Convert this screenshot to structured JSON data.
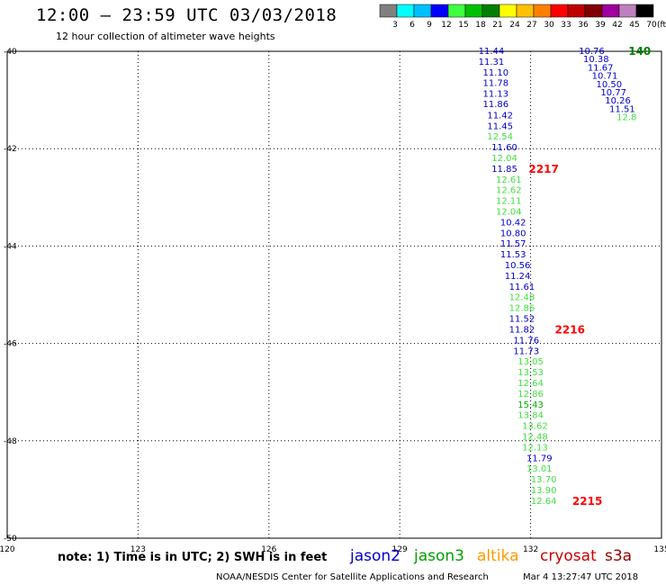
{
  "header": {
    "title": "12:00 – 23:59 UTC 03/03/2018",
    "subtitle": "12 hour collection of altimeter wave heights"
  },
  "colorbar": {
    "colors": [
      "#808080",
      "#00ffff",
      "#00c0ff",
      "#0000ff",
      "#40ff40",
      "#00c000",
      "#008000",
      "#ffff00",
      "#ffc000",
      "#ff8000",
      "#ff0000",
      "#c00000",
      "#800000",
      "#a000a0",
      "#c080c0",
      "#000000"
    ],
    "labels": [
      "3",
      "6",
      "9",
      "12",
      "15",
      "18",
      "21",
      "24",
      "27",
      "30",
      "33",
      "36",
      "39",
      "42",
      "45",
      "70"
    ],
    "unit": "(ft)"
  },
  "footer": {
    "note": "note: 1) Time is in UTC; 2) SWH is in feet",
    "credit": "NOAA/NESDIS Center for Satellite Applications and Research",
    "timestamp": "Mar  4 13:27:47 UTC 2018"
  },
  "legend": [
    {
      "name": "jason2",
      "color": "#0000cc"
    },
    {
      "name": "jason3",
      "color": "#00a000"
    },
    {
      "name": "altika",
      "color": "#ff9900"
    },
    {
      "name": "cryosat",
      "color": "#cc0000"
    },
    {
      "name": "s3a",
      "color": "#990000"
    }
  ],
  "chart_data": {
    "type": "scatter",
    "title": "12:00 – 23:59 UTC 03/03/2018",
    "xlim": [
      120,
      135
    ],
    "ylim": [
      -50,
      -40
    ],
    "xticks": [
      "120",
      "123",
      "126",
      "129",
      "132",
      "135"
    ],
    "yticks": [
      "-40",
      "-42",
      "-44",
      "-46",
      "-48",
      "-50"
    ],
    "grid": true,
    "series": [
      {
        "name": "jason3",
        "color": "#0000cc",
        "points": [
          {
            "lon": 131.1,
            "lat": -40.0,
            "v": "11.44"
          },
          {
            "lon": 131.1,
            "lat": -40.22,
            "v": "11.31"
          },
          {
            "lon": 131.2,
            "lat": -40.44,
            "v": "11.10"
          },
          {
            "lon": 131.2,
            "lat": -40.66,
            "v": "11.78"
          },
          {
            "lon": 131.2,
            "lat": -40.88,
            "v": "11.13"
          },
          {
            "lon": 131.2,
            "lat": -41.09,
            "v": "11.86"
          },
          {
            "lon": 131.3,
            "lat": -41.32,
            "v": "11.42"
          },
          {
            "lon": 131.3,
            "lat": -41.54,
            "v": "11.45"
          },
          {
            "lon": 131.3,
            "lat": -41.76,
            "v": "12.54"
          },
          {
            "lon": 131.4,
            "lat": -41.98,
            "v": "11.60"
          },
          {
            "lon": 131.4,
            "lat": -42.2,
            "v": "12.04"
          },
          {
            "lon": 131.4,
            "lat": -42.42,
            "v": "11.85"
          },
          {
            "lon": 131.5,
            "lat": -42.64,
            "v": "12.61"
          },
          {
            "lon": 131.5,
            "lat": -42.86,
            "v": "12.62"
          },
          {
            "lon": 131.5,
            "lat": -43.08,
            "v": "12.11"
          },
          {
            "lon": 131.5,
            "lat": -43.3,
            "v": "12.04"
          },
          {
            "lon": 131.6,
            "lat": -43.52,
            "v": "10.42"
          },
          {
            "lon": 131.6,
            "lat": -43.74,
            "v": "10.80"
          },
          {
            "lon": 131.6,
            "lat": -43.96,
            "v": "11.57"
          },
          {
            "lon": 131.6,
            "lat": -44.18,
            "v": "11.53"
          },
          {
            "lon": 131.7,
            "lat": -44.4,
            "v": "10.56"
          },
          {
            "lon": 131.7,
            "lat": -44.62,
            "v": "11.24"
          },
          {
            "lon": 131.8,
            "lat": -44.84,
            "v": "11.61"
          },
          {
            "lon": 131.8,
            "lat": -45.06,
            "v": "12.48"
          },
          {
            "lon": 131.8,
            "lat": -45.28,
            "v": "12.86"
          },
          {
            "lon": 131.8,
            "lat": -45.5,
            "v": "11.52"
          },
          {
            "lon": 131.8,
            "lat": -45.72,
            "v": "11.82"
          },
          {
            "lon": 131.9,
            "lat": -45.94,
            "v": "11.76"
          },
          {
            "lon": 131.9,
            "lat": -46.16,
            "v": "11.73"
          },
          {
            "lon": 132.0,
            "lat": -46.38,
            "v": "13.05"
          },
          {
            "lon": 132.0,
            "lat": -46.6,
            "v": "13.53"
          },
          {
            "lon": 132.0,
            "lat": -46.82,
            "v": "12.64"
          },
          {
            "lon": 132.0,
            "lat": -47.04,
            "v": "12.86"
          },
          {
            "lon": 132.0,
            "lat": -47.26,
            "v": "15.43"
          },
          {
            "lon": 132.0,
            "lat": -47.48,
            "v": "13.84"
          },
          {
            "lon": 132.1,
            "lat": -47.7,
            "v": "13.62"
          },
          {
            "lon": 132.1,
            "lat": -47.92,
            "v": "12.48"
          },
          {
            "lon": 132.1,
            "lat": -48.14,
            "v": "12.13"
          },
          {
            "lon": 132.2,
            "lat": -48.36,
            "v": "11.79"
          },
          {
            "lon": 132.2,
            "lat": -48.58,
            "v": "13.01"
          },
          {
            "lon": 132.3,
            "lat": -48.8,
            "v": "13.70"
          },
          {
            "lon": 132.3,
            "lat": -49.02,
            "v": "13.90"
          },
          {
            "lon": 132.3,
            "lat": -49.24,
            "v": "12.64"
          }
        ],
        "time_labels": [
          {
            "lon": 132.3,
            "lat": -42.42,
            "t": "2217"
          },
          {
            "lon": 132.9,
            "lat": -45.72,
            "t": "2216"
          },
          {
            "lon": 133.3,
            "lat": -49.24,
            "t": "2215"
          }
        ]
      },
      {
        "name": "",
        "color": "#0000cc",
        "points": [
          {
            "lon": 133.4,
            "lat": -40.0,
            "v": "10.76"
          },
          {
            "lon": 133.5,
            "lat": -40.17,
            "v": "10.38"
          },
          {
            "lon": 133.6,
            "lat": -40.34,
            "v": "11.67"
          },
          {
            "lon": 133.7,
            "lat": -40.51,
            "v": "10.71"
          },
          {
            "lon": 133.8,
            "lat": -40.68,
            "v": "10.50"
          },
          {
            "lon": 133.9,
            "lat": -40.85,
            "v": "10.77"
          },
          {
            "lon": 134.0,
            "lat": -41.02,
            "v": "10.26"
          },
          {
            "lon": 134.1,
            "lat": -41.19,
            "v": "11.51"
          },
          {
            "lon": 134.2,
            "lat": -41.36,
            "v": "12.8"
          }
        ],
        "time_labels": [
          {
            "lon": 134.5,
            "lat": -40.0,
            "t": "140"
          }
        ]
      }
    ]
  }
}
